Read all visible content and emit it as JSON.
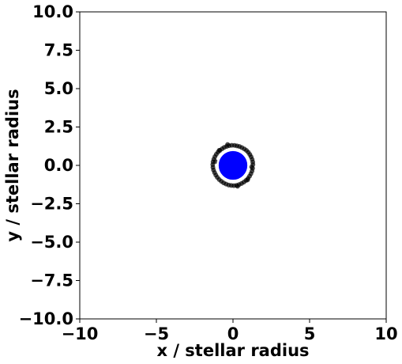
{
  "chart_data": {
    "type": "scatter",
    "xlabel": "x / stellar radius",
    "ylabel": "y / stellar radius",
    "xlim": [
      -10,
      10
    ],
    "ylim": [
      -10,
      10
    ],
    "xticks": [
      -10,
      -5,
      0,
      5,
      10
    ],
    "xtick_labels": [
      "−10",
      "−5",
      "0",
      "5",
      "10"
    ],
    "yticks": [
      -10.0,
      -7.5,
      -5.0,
      -2.5,
      0.0,
      2.5,
      5.0,
      7.5,
      10.0
    ],
    "ytick_labels": [
      "−10.0",
      "−7.5",
      "−5.0",
      "−2.5",
      "0.0",
      "2.5",
      "5.0",
      "7.5",
      "10.0"
    ],
    "grid": false,
    "star": {
      "x": 0,
      "y": 0,
      "radius": 1.0,
      "color": "#0000ff",
      "outline": "#ffffff"
    },
    "particles": {
      "color": "#000000",
      "x": [
        1.3,
        1.29,
        1.25,
        1.18,
        1.1,
        1.0,
        0.88,
        0.74,
        0.58,
        0.42,
        0.26,
        0.1,
        -0.08,
        -0.25,
        -0.41,
        -0.57,
        -0.71,
        -0.85,
        -0.98,
        -1.09,
        -1.18,
        -1.25,
        -1.3,
        -1.32,
        -1.31,
        -1.27,
        -1.2,
        -1.12,
        -1.02,
        -0.9,
        -0.76,
        -0.61,
        -0.45,
        -0.28,
        -0.11,
        0.06,
        0.23,
        0.4,
        0.56,
        0.71,
        0.85,
        0.98,
        1.08,
        1.17,
        1.24,
        1.28,
        1.22,
        -1.15,
        0.95,
        -0.35,
        0.3,
        -0.9
      ],
      "y": [
        0.05,
        0.22,
        0.39,
        0.56,
        0.71,
        0.85,
        0.97,
        1.07,
        1.16,
        1.23,
        1.27,
        1.3,
        1.31,
        1.28,
        1.24,
        1.17,
        1.08,
        0.98,
        0.86,
        0.72,
        0.57,
        0.4,
        0.23,
        0.05,
        -0.13,
        -0.3,
        -0.47,
        -0.63,
        -0.78,
        -0.92,
        -1.04,
        -1.14,
        -1.22,
        -1.28,
        -1.31,
        -1.32,
        -1.3,
        -1.25,
        -1.18,
        -1.09,
        -0.98,
        -0.85,
        -0.7,
        -0.54,
        -0.37,
        -0.19,
        -0.1,
        0.25,
        -0.95,
        1.36,
        -1.36,
        0.98
      ]
    }
  }
}
